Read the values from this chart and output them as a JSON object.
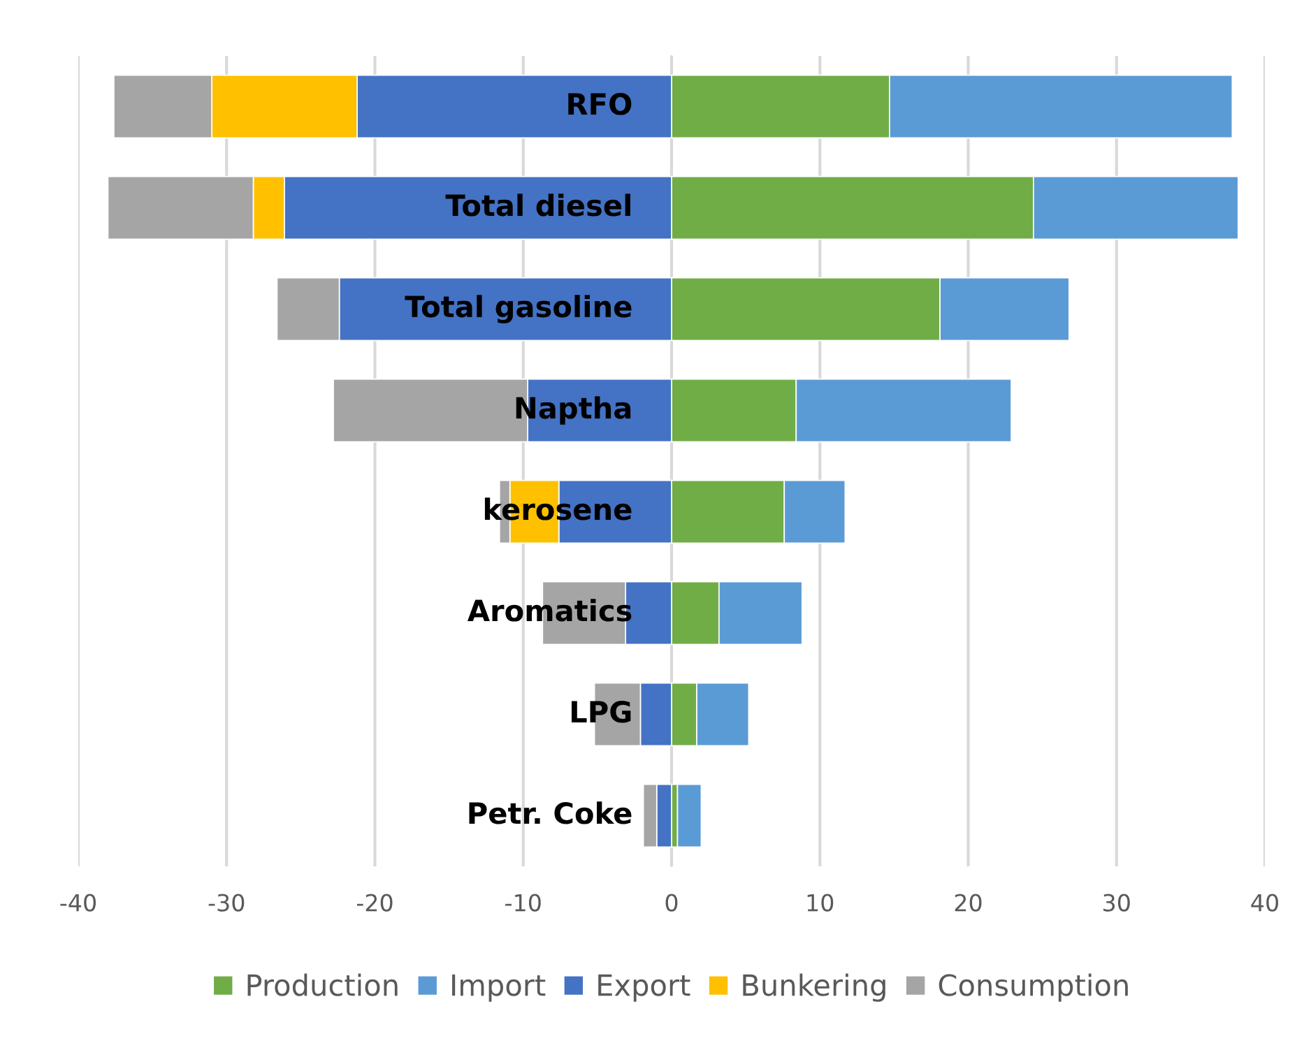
{
  "chart_data": {
    "type": "bar",
    "orientation": "horizontal",
    "stacked": true,
    "categories": [
      "RFO",
      "Total diesel",
      "Total gasoline",
      "Naptha",
      "kerosene",
      "Aromatics",
      "LPG",
      "Petr. Coke"
    ],
    "series": [
      {
        "name": "Production",
        "color": "#70ad47",
        "values": [
          14.7,
          24.4,
          18.1,
          8.4,
          7.6,
          3.2,
          1.7,
          0.4
        ]
      },
      {
        "name": "Import",
        "color": "#5b9bd5",
        "values": [
          23.1,
          13.8,
          8.7,
          14.5,
          4.1,
          5.6,
          3.5,
          1.6
        ]
      },
      {
        "name": "Export",
        "color": "#4472c4",
        "values": [
          -21.2,
          -26.1,
          -22.4,
          -9.7,
          -7.6,
          -3.1,
          -2.1,
          -1.0
        ]
      },
      {
        "name": "Bunkering",
        "color": "#ffc000",
        "values": [
          -9.8,
          -2.1,
          null,
          null,
          -3.3,
          null,
          null,
          null
        ]
      },
      {
        "name": "Consumption",
        "color": "#a5a5a5",
        "values": [
          -6.6,
          -9.8,
          -4.2,
          -13.1,
          -0.7,
          -5.6,
          -3.1,
          -0.9
        ]
      }
    ],
    "xlim": [
      -40,
      40
    ],
    "xticks": [
      -40,
      -30,
      -20,
      -10,
      0,
      10,
      20,
      30,
      40
    ],
    "grid": "x",
    "legend": "bottom"
  }
}
